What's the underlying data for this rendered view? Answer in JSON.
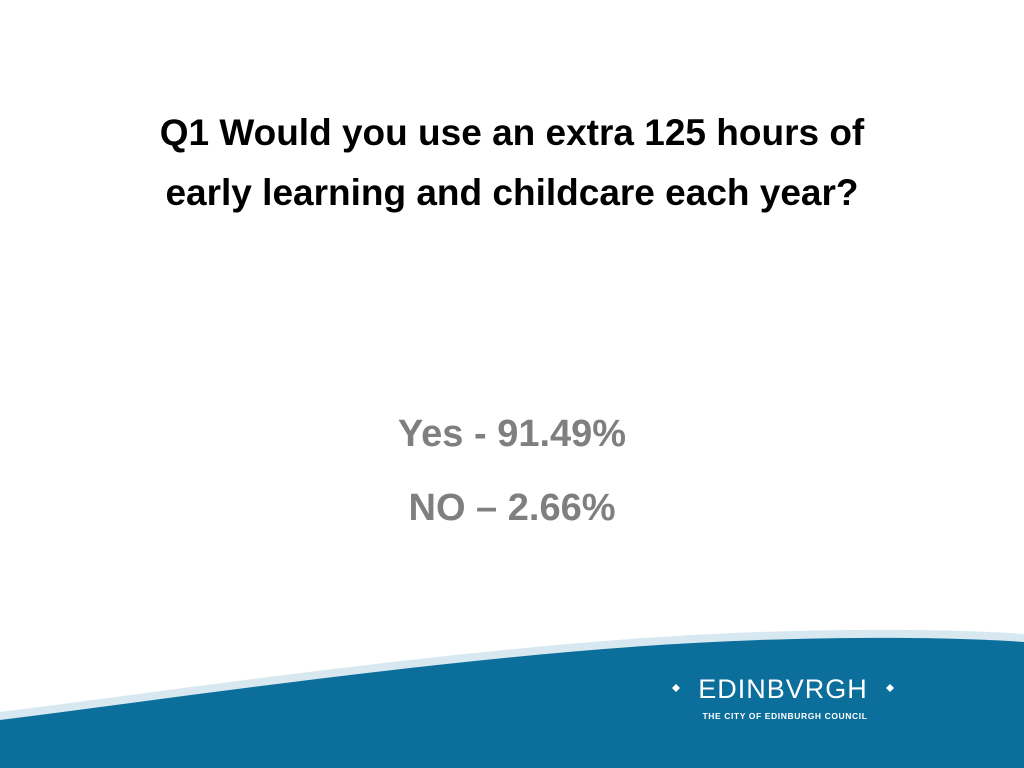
{
  "slide": {
    "title_lines": [
      "Q1 Would you use an extra 125 hours of",
      "early learning and childcare each year?"
    ],
    "body_lines": [
      "Yes -  91.49%",
      "NO – 2.66%"
    ],
    "logo": {
      "name": "EDINBVRGH",
      "subtitle": "THE CITY OF EDINBURGH COUNCIL"
    }
  }
}
